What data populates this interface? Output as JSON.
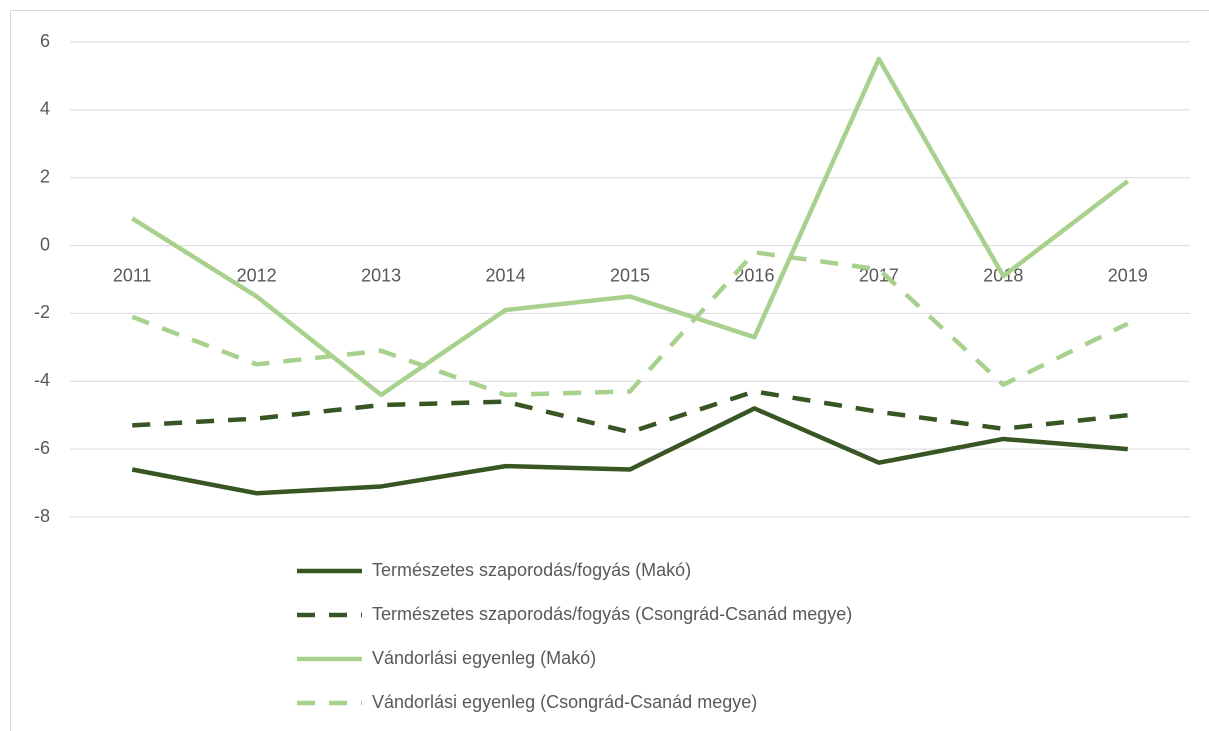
{
  "chart_data": {
    "type": "line",
    "categories": [
      "2011",
      "2012",
      "2013",
      "2014",
      "2015",
      "2016",
      "2017",
      "2018",
      "2019"
    ],
    "series": [
      {
        "name": "Természetes szaporodás/fogyás (Makó)",
        "color": "#375623",
        "dashed": false,
        "values": [
          -6.6,
          -7.3,
          -7.1,
          -6.5,
          -6.6,
          -4.8,
          -6.4,
          -5.7,
          -6.0
        ]
      },
      {
        "name": "Természetes szaporodás/fogyás (Csongrád-Csanád megye)",
        "color": "#375623",
        "dashed": true,
        "values": [
          -5.3,
          -5.1,
          -4.7,
          -4.6,
          -5.5,
          -4.3,
          -4.9,
          -5.4,
          -5.0
        ]
      },
      {
        "name": "Vándorlási egyenleg (Makó)",
        "color": "#a9d18e",
        "dashed": false,
        "values": [
          0.8,
          -1.5,
          -4.4,
          -1.9,
          -1.5,
          -2.7,
          5.5,
          -0.9,
          1.9
        ]
      },
      {
        "name": "Vándorlási egyenleg (Csongrád-Csanád megye)",
        "color": "#a9d18e",
        "dashed": true,
        "values": [
          -2.1,
          -3.5,
          -3.1,
          -4.4,
          -4.3,
          -0.2,
          -0.7,
          -4.1,
          -2.3
        ]
      }
    ],
    "ylim": [
      -8,
      6
    ],
    "yticks": [
      -8,
      -6,
      -4,
      -2,
      0,
      2,
      4,
      6
    ],
    "grid": true,
    "legend": "bottom"
  }
}
